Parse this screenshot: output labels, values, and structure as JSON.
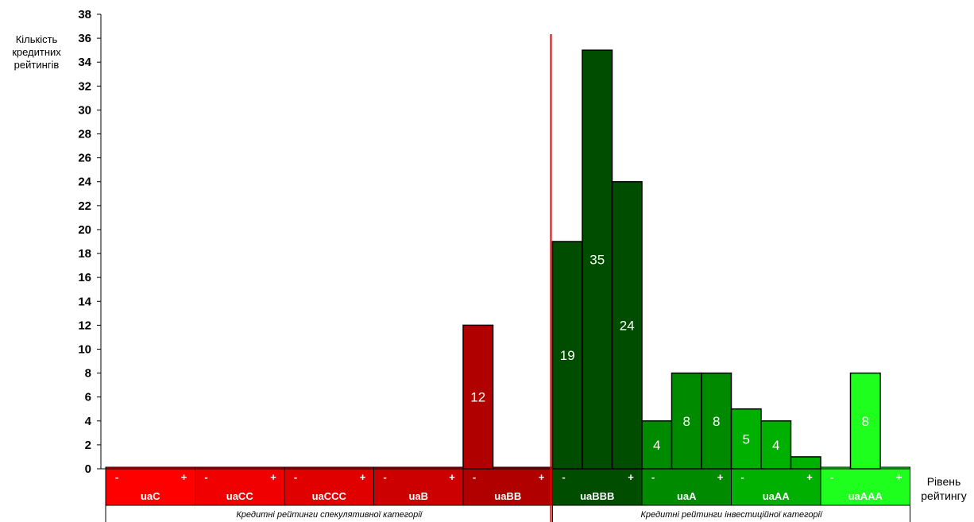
{
  "chart_data": {
    "type": "bar",
    "ylabel": "Кількість кредитних рейтингів",
    "xlabel": "Рівень рейтингу",
    "ylim": [
      0,
      38
    ],
    "yticks": [
      0,
      2,
      4,
      6,
      8,
      10,
      12,
      14,
      16,
      18,
      20,
      22,
      24,
      26,
      28,
      30,
      32,
      34,
      36,
      38
    ],
    "grid": false,
    "categories": [
      "uaC-",
      "uaC",
      "uaC+",
      "uaCC-",
      "uaCC",
      "uaCC+",
      "uaCCC-",
      "uaCCC",
      "uaCCC+",
      "uaB-",
      "uaB",
      "uaB+",
      "uaBB-",
      "uaBB",
      "uaBB+",
      "uaBBB-",
      "uaBBB",
      "uaBBB+",
      "uaA-",
      "uaA",
      "uaA+",
      "uaAA-",
      "uaAA",
      "uaAA+",
      "uaAAA-",
      "uaAAA",
      "uaAAA+"
    ],
    "values": [
      0,
      0,
      0,
      0,
      0,
      0,
      0,
      0,
      0,
      0,
      0,
      0,
      12,
      0,
      0,
      19,
      35,
      24,
      4,
      8,
      8,
      5,
      4,
      1,
      0,
      8,
      0
    ],
    "data_labels": [
      "",
      "",
      "",
      "",
      "",
      "",
      "",
      "",
      "",
      "",
      "",
      "",
      "12",
      "",
      "",
      "19",
      "35",
      "24",
      "4",
      "8",
      "8",
      "5",
      "4",
      "",
      "",
      "8",
      ""
    ],
    "groups": [
      {
        "label": "uaC",
        "minus": "-",
        "plus": "+",
        "color": "#FF0000"
      },
      {
        "label": "uaCC",
        "minus": "-",
        "plus": "+",
        "color": "#F00000"
      },
      {
        "label": "uaCCC",
        "minus": "-",
        "plus": "+",
        "color": "#E00000"
      },
      {
        "label": "uaB",
        "minus": "-",
        "plus": "+",
        "color": "#CC0000"
      },
      {
        "label": "uaBB",
        "minus": "-",
        "plus": "+",
        "color": "#B00000"
      },
      {
        "label": "uaBBB",
        "minus": "-",
        "plus": "+",
        "color": "#004D00"
      },
      {
        "label": "uaA",
        "minus": "-",
        "plus": "+",
        "color": "#008A00"
      },
      {
        "label": "uaAA",
        "minus": "-",
        "plus": "+",
        "color": "#00B000"
      },
      {
        "label": "uaAAA",
        "minus": "-",
        "plus": "+",
        "color": "#1EFF1E"
      }
    ],
    "categories_band": [
      {
        "label": "Кредитні рейтинги спекулятивної категорії",
        "groups": 5
      },
      {
        "label": "Кредитні рейтинги інвестиційної категорії",
        "groups": 4
      }
    ],
    "divider": {
      "color": "#E00000",
      "after_group": 5
    }
  }
}
